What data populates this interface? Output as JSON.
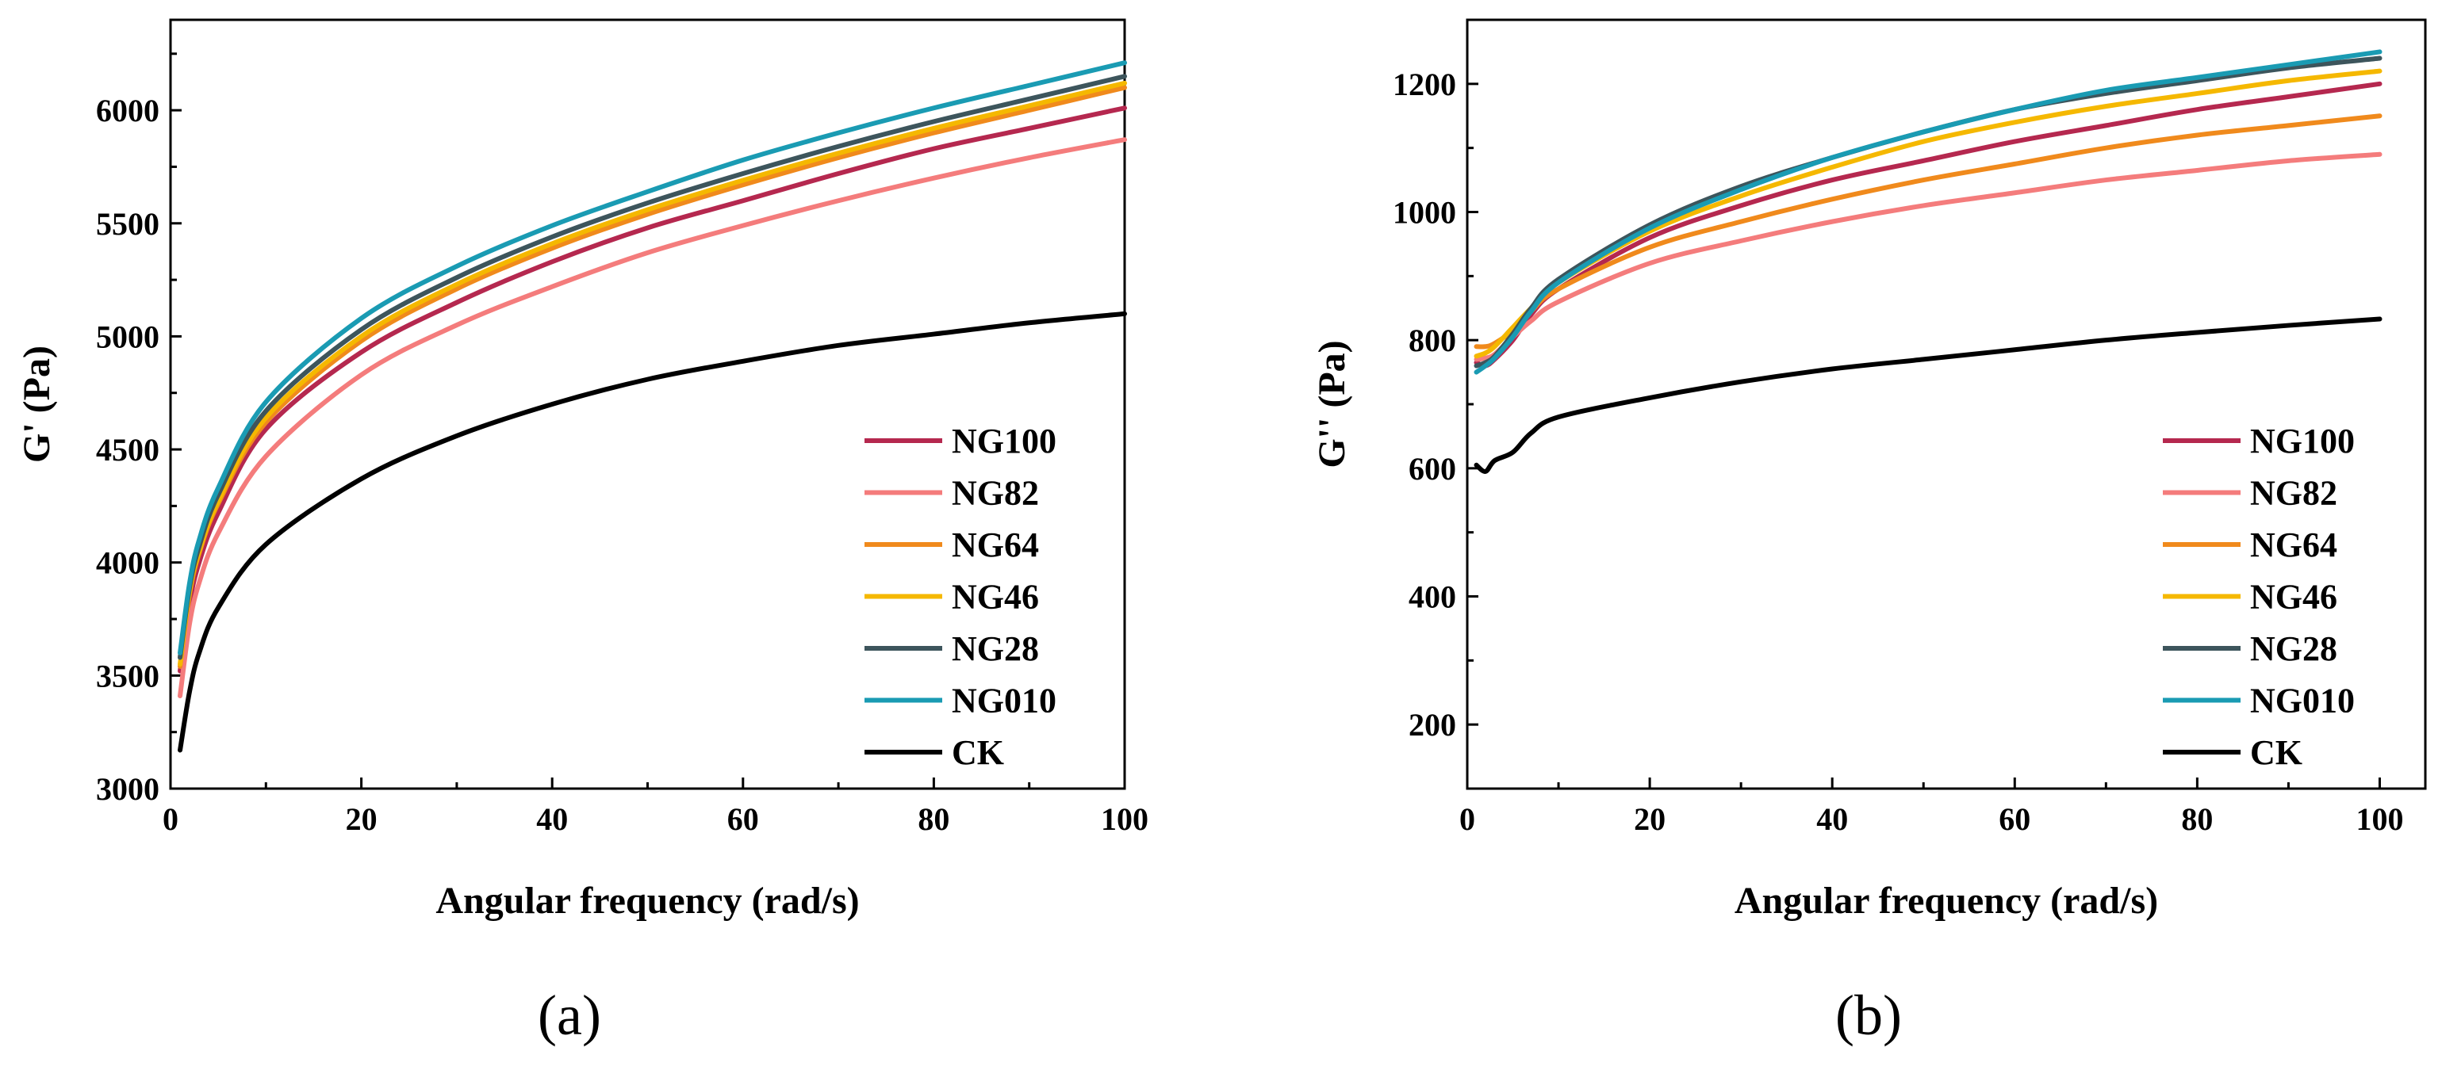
{
  "chart_data": [
    {
      "type": "line",
      "panel_label": "(a)",
      "xlabel": "Angular frequency (rad/s)",
      "ylabel": "G' (Pa)",
      "xlim": [
        0,
        100
      ],
      "ylim": [
        3000,
        6400
      ],
      "xticks": [
        0,
        20,
        40,
        60,
        80,
        100
      ],
      "yticks": [
        3000,
        3500,
        4000,
        4500,
        5000,
        5500,
        6000
      ],
      "legend_position": "bottom-right",
      "x": [
        1,
        2,
        3,
        5,
        10,
        20,
        30,
        40,
        50,
        60,
        70,
        80,
        90,
        100
      ],
      "series": [
        {
          "name": "NG100",
          "color": "#b5284f",
          "values": [
            3520,
            3820,
            4000,
            4220,
            4590,
            4930,
            5150,
            5330,
            5480,
            5600,
            5720,
            5830,
            5920,
            6010
          ]
        },
        {
          "name": "NG82",
          "color": "#f47c7c",
          "values": [
            3410,
            3730,
            3910,
            4130,
            4470,
            4830,
            5050,
            5220,
            5370,
            5490,
            5600,
            5700,
            5790,
            5870
          ]
        },
        {
          "name": "NG64",
          "color": "#f08a1c",
          "values": [
            3540,
            3860,
            4040,
            4260,
            4620,
            4980,
            5210,
            5390,
            5540,
            5670,
            5790,
            5900,
            6000,
            6100
          ]
        },
        {
          "name": "NG46",
          "color": "#f5b800",
          "values": [
            3550,
            3870,
            4050,
            4270,
            4640,
            5000,
            5230,
            5410,
            5560,
            5690,
            5810,
            5920,
            6020,
            6120
          ]
        },
        {
          "name": "NG28",
          "color": "#3d555c",
          "values": [
            3580,
            3890,
            4070,
            4300,
            4670,
            5030,
            5260,
            5440,
            5590,
            5720,
            5840,
            5950,
            6050,
            6150
          ]
        },
        {
          "name": "NG010",
          "color": "#1a9bb3",
          "values": [
            3600,
            3910,
            4100,
            4330,
            4710,
            5080,
            5310,
            5490,
            5640,
            5780,
            5900,
            6010,
            6110,
            6210
          ]
        },
        {
          "name": "CK",
          "color": "#000000",
          "values": [
            3170,
            3430,
            3600,
            3800,
            4080,
            4370,
            4560,
            4700,
            4810,
            4890,
            4960,
            5010,
            5060,
            5100
          ]
        }
      ]
    },
    {
      "type": "line",
      "panel_label": "(b)",
      "xlabel": "Angular frequency (rad/s)",
      "ylabel": "G'' (Pa)",
      "xlim": [
        0,
        105
      ],
      "ylim": [
        100,
        1300
      ],
      "xticks": [
        0,
        20,
        40,
        60,
        80,
        100
      ],
      "yticks": [
        200,
        400,
        600,
        800,
        1000,
        1200
      ],
      "legend_position": "bottom-right",
      "x": [
        1,
        2,
        3,
        5,
        7,
        10,
        20,
        30,
        40,
        50,
        60,
        70,
        80,
        90,
        100
      ],
      "series": [
        {
          "name": "NG100",
          "color": "#b5284f",
          "values": [
            765,
            760,
            770,
            800,
            840,
            880,
            960,
            1010,
            1050,
            1080,
            1110,
            1135,
            1160,
            1180,
            1200
          ]
        },
        {
          "name": "NG82",
          "color": "#f47c7c",
          "values": [
            770,
            772,
            778,
            805,
            830,
            860,
            920,
            955,
            985,
            1010,
            1030,
            1050,
            1065,
            1080,
            1090
          ]
        },
        {
          "name": "NG64",
          "color": "#f08a1c",
          "values": [
            790,
            790,
            795,
            815,
            845,
            880,
            945,
            985,
            1020,
            1050,
            1075,
            1100,
            1120,
            1135,
            1150
          ]
        },
        {
          "name": "NG46",
          "color": "#f5b800",
          "values": [
            775,
            780,
            790,
            820,
            850,
            890,
            970,
            1025,
            1070,
            1110,
            1140,
            1165,
            1185,
            1205,
            1220
          ]
        },
        {
          "name": "NG28",
          "color": "#3d555c",
          "values": [
            760,
            765,
            775,
            810,
            850,
            895,
            980,
            1040,
            1085,
            1125,
            1160,
            1185,
            1205,
            1225,
            1240
          ]
        },
        {
          "name": "NG010",
          "color": "#1a9bb3",
          "values": [
            750,
            760,
            772,
            805,
            845,
            890,
            975,
            1035,
            1085,
            1125,
            1160,
            1190,
            1210,
            1230,
            1250
          ]
        },
        {
          "name": "CK",
          "color": "#000000",
          "values": [
            605,
            595,
            612,
            625,
            655,
            680,
            710,
            735,
            755,
            770,
            785,
            800,
            812,
            823,
            833
          ]
        }
      ]
    }
  ]
}
